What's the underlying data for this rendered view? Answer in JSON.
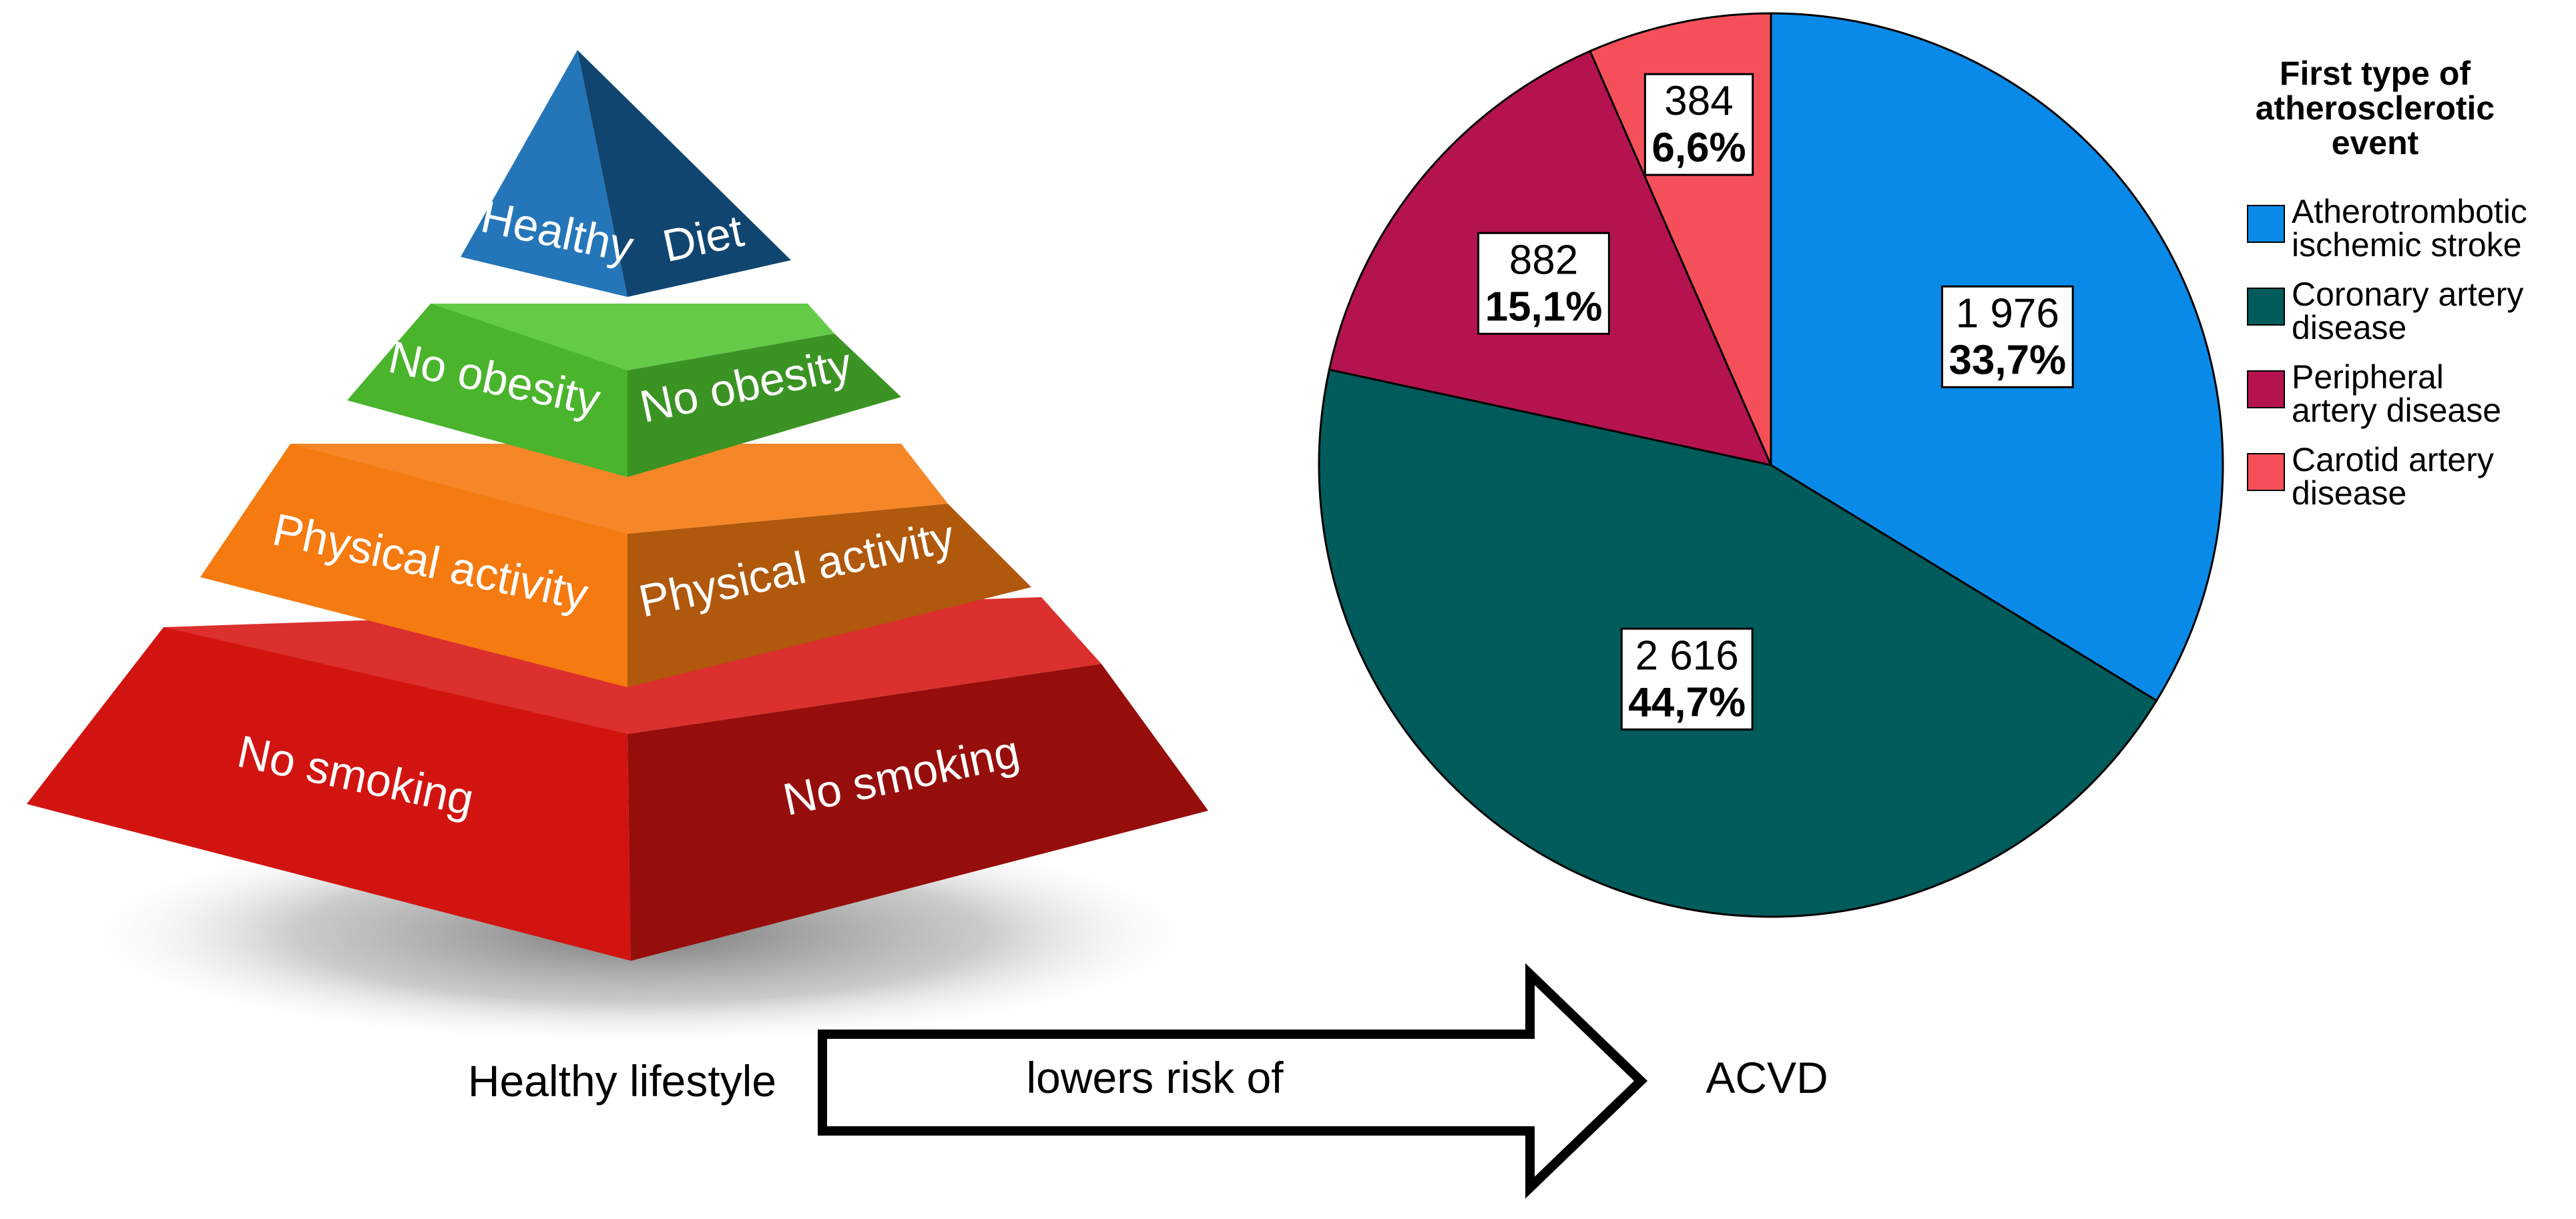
{
  "pyramid": {
    "levels": [
      {
        "left": "Healthy",
        "right": "Diet"
      },
      {
        "left": "No obesity",
        "right": "No obesity"
      },
      {
        "left": "Physical activity",
        "right": "Physical activity"
      },
      {
        "left": "No smoking",
        "right": "No smoking"
      }
    ],
    "colors": {
      "diet": "#1a6fb5",
      "obesity": "#4fc430",
      "activity": "#f57a10",
      "smoking": "#d61410"
    }
  },
  "flow": {
    "left_label": "Healthy lifestyle",
    "arrow_label": "lowers risk of",
    "right_label": "ACVD"
  },
  "chart_data": {
    "type": "pie",
    "title": "First type of atherosclerotic event",
    "title_lines": [
      "First type of",
      "atherosclerotic",
      "event"
    ],
    "legend_position": "right",
    "slices": [
      {
        "name": "Atherotrombotic ischemic stroke",
        "legend_lines": [
          "Atherotrombotic",
          "ischemic stroke"
        ],
        "value": 1976,
        "value_label": "1 976",
        "percent_label": "33,7%",
        "color": "#0a8ae8"
      },
      {
        "name": "Coronary artery disease",
        "legend_lines": [
          "Coronary artery",
          "disease"
        ],
        "value": 2616,
        "value_label": "2 616",
        "percent_label": "44,7%",
        "color": "#005b5b"
      },
      {
        "name": "Peripheral artery disease",
        "legend_lines": [
          "Peripheral",
          "artery disease"
        ],
        "value": 882,
        "value_label": "882",
        "percent_label": "15,1%",
        "color": "#b5134f"
      },
      {
        "name": "Carotid artery disease",
        "legend_lines": [
          "Carotid artery",
          "disease"
        ],
        "value": 384,
        "value_label": "384",
        "percent_label": "6,6%",
        "color": "#f5505a"
      }
    ]
  }
}
